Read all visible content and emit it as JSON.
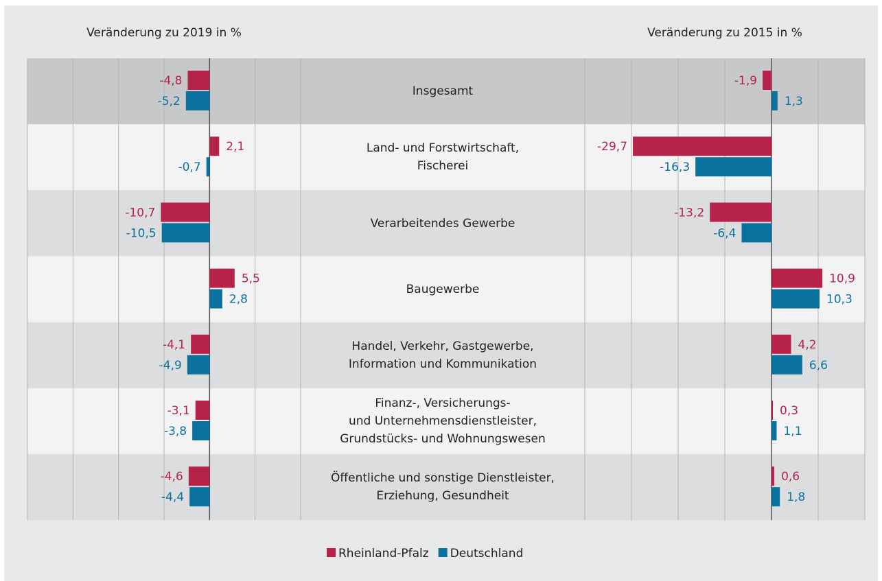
{
  "chart_data": {
    "type": "bar",
    "orientation": "horizontal",
    "categories": [
      "Insgesamt",
      "Land- und Forstwirtschaft,\nFischerei",
      "Verarbeitendes Gewerbe",
      "Baugewerbe",
      "Handel, Verkehr, Gastgewerbe,\nInformation und Kommunikation",
      "Finanz-, Versicherungs-\nund Unternehmensdienstleister,\nGrundstücks- und Wohnungswesen",
      "Öffentliche und sonstige Dienstleister,\nErziehung, Gesundheit"
    ],
    "series": [
      {
        "name": "Rheinland-Pfalz",
        "color": "#b5234b"
      },
      {
        "name": "Deutschland",
        "color": "#0b72a0"
      }
    ],
    "grid": true,
    "panels": [
      {
        "title": "Veränderung zu 2019 in %",
        "xlim": [
          -40,
          20
        ],
        "xticks": [
          -40,
          -30,
          -20,
          -10,
          0,
          10,
          20
        ],
        "values": [
          [
            -4.8,
            2.1,
            -10.7,
            5.5,
            -4.1,
            -3.1,
            -4.6
          ],
          [
            -5.2,
            -0.7,
            -10.5,
            2.8,
            -4.9,
            -3.8,
            -4.4
          ]
        ],
        "value_labels": [
          [
            "-4,8",
            "2,1",
            "-10,7",
            "5,5",
            "-4,1",
            "-3,1",
            "-4,6"
          ],
          [
            "-5,2",
            "-0,7",
            "-10,5",
            "2,8",
            "-4,9",
            "-3,8",
            "-4,4"
          ]
        ]
      },
      {
        "title": "Veränderung zu 2015 in %",
        "xlim": [
          -40,
          20
        ],
        "xticks": [
          -40,
          -30,
          -20,
          -10,
          0,
          10,
          20
        ],
        "values": [
          [
            -1.9,
            -29.7,
            -13.2,
            10.9,
            4.2,
            0.3,
            0.6
          ],
          [
            1.3,
            -16.3,
            -6.4,
            10.3,
            6.6,
            1.1,
            1.8
          ]
        ],
        "value_labels": [
          [
            "-1,9",
            "-29,7",
            "-13,2",
            "10,9",
            "4,2",
            "0,3",
            "0,6"
          ],
          [
            "1,3",
            "-16,3",
            "-6,4",
            "10,3",
            "6,6",
            "1,1",
            "1,8"
          ]
        ]
      }
    ]
  }
}
